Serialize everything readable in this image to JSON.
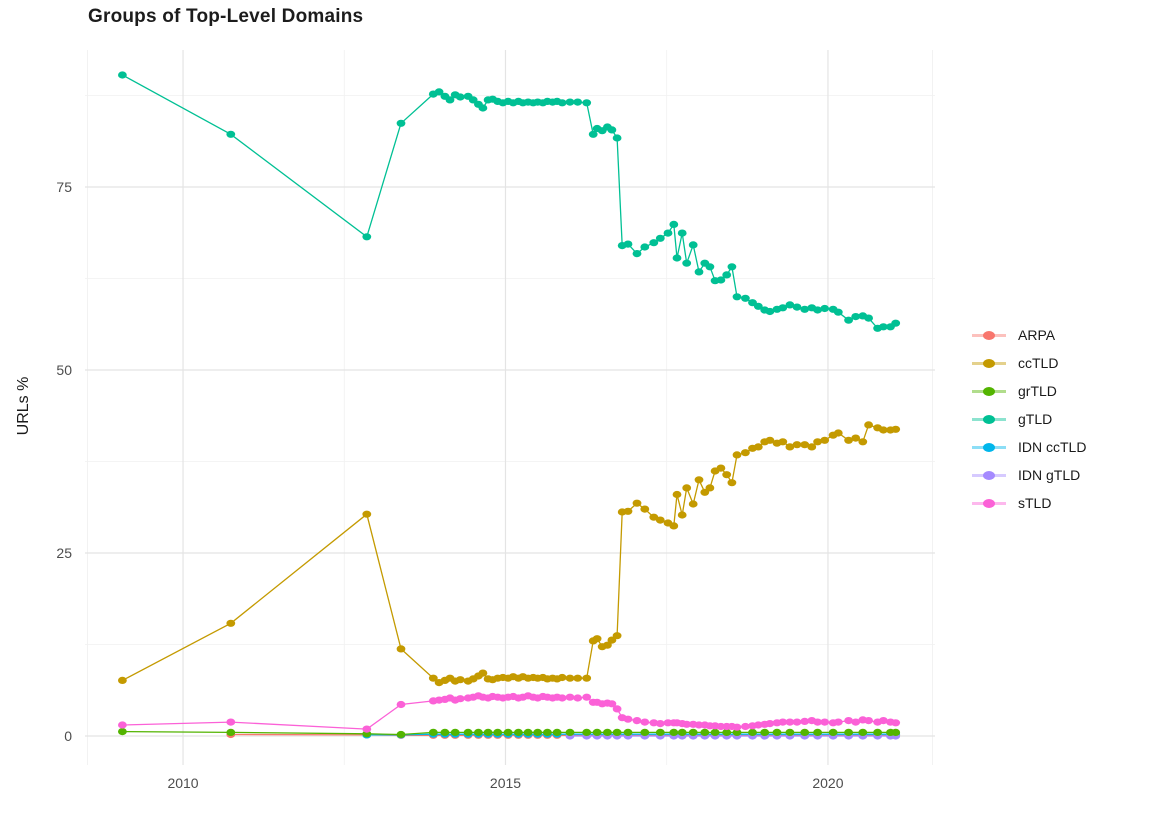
{
  "chart_data": {
    "type": "line",
    "title": "Groups of Top-Level Domains",
    "xlabel": "",
    "ylabel": "URLs %",
    "xlim": [
      2008.48,
      2021.66
    ],
    "ylim": [
      -3.96,
      93.72
    ],
    "grid": true,
    "legend_position": "right",
    "background_color": "#ffffff",
    "grid_major_color": "#e4e4e4",
    "grid_minor_color": "#f0f0f0",
    "axis_text_color": "#4d4d4d",
    "x_ticks": [
      2010,
      2015,
      2020
    ],
    "x_tick_labels": [
      "2010",
      "2015",
      "2020"
    ],
    "x_minor_ticks": [
      2008.52,
      2012.5,
      2017.5,
      2021.62
    ],
    "y_ticks": [
      0,
      25,
      50,
      75
    ],
    "y_tick_labels": [
      "0",
      "25",
      "50",
      "75"
    ],
    "y_minor_ticks": [
      12.5,
      37.5,
      62.5,
      87.5
    ],
    "draw_order": [
      "ARPA",
      "IDN ccTLD",
      "IDN gTLD",
      "grTLD",
      "gTLD",
      "ccTLD",
      "sTLD"
    ],
    "series": [
      {
        "name": "ARPA",
        "color": "#F8766D",
        "x": [
          2010.74,
          2012.85,
          2013.38,
          2013.88,
          2014.06,
          2014.22,
          2014.42,
          2014.58,
          2014.73,
          2014.88,
          2015.04,
          2015.2,
          2015.35,
          2015.5,
          2015.65,
          2015.8,
          2016.0,
          2016.26,
          2016.42,
          2016.58,
          2016.73,
          2016.9,
          2017.16,
          2017.4,
          2017.61,
          2017.74,
          2017.91,
          2018.09,
          2018.25,
          2018.43,
          2018.59,
          2018.83,
          2019.02,
          2019.21,
          2019.41,
          2019.64,
          2019.84,
          2020.08,
          2020.32,
          2020.54,
          2020.77,
          2020.97,
          2021.05
        ],
        "y": [
          0.2,
          0.15,
          0.1,
          0.1,
          0.1,
          0.1,
          0.1,
          0.1,
          0.1,
          0.1,
          0.1,
          0.1,
          0.1,
          0.1,
          0.1,
          0.1,
          0.1,
          0.1,
          0.1,
          0.1,
          0.1,
          0.1,
          0.1,
          0.1,
          0.1,
          0.1,
          0.1,
          0.1,
          0.1,
          0.1,
          0.1,
          0.1,
          0.1,
          0.1,
          0.1,
          0.1,
          0.1,
          0.1,
          0.1,
          0.1,
          0.1,
          0.1,
          0.1
        ]
      },
      {
        "name": "ccTLD",
        "color": "#C49A00",
        "x": [
          2009.06,
          2010.74,
          2012.85,
          2013.38,
          2013.88,
          2013.97,
          2014.06,
          2014.14,
          2014.22,
          2014.3,
          2014.42,
          2014.5,
          2014.58,
          2014.65,
          2014.73,
          2014.8,
          2014.88,
          2014.96,
          2015.04,
          2015.12,
          2015.2,
          2015.27,
          2015.35,
          2015.43,
          2015.5,
          2015.58,
          2015.65,
          2015.73,
          2015.8,
          2015.88,
          2016.0,
          2016.12,
          2016.26,
          2016.36,
          2016.42,
          2016.5,
          2016.58,
          2016.65,
          2016.73,
          2016.81,
          2016.9,
          2017.04,
          2017.16,
          2017.3,
          2017.4,
          2017.52,
          2017.61,
          2017.66,
          2017.74,
          2017.81,
          2017.91,
          2018.0,
          2018.09,
          2018.17,
          2018.25,
          2018.34,
          2018.43,
          2018.51,
          2018.59,
          2018.72,
          2018.83,
          2018.92,
          2019.02,
          2019.1,
          2019.21,
          2019.3,
          2019.41,
          2019.52,
          2019.64,
          2019.75,
          2019.84,
          2019.95,
          2020.08,
          2020.16,
          2020.32,
          2020.43,
          2020.54,
          2020.63,
          2020.77,
          2020.86,
          2020.97,
          2021.05
        ],
        "y": [
          7.6,
          15.4,
          30.3,
          11.9,
          7.9,
          7.3,
          7.6,
          7.9,
          7.5,
          7.7,
          7.5,
          7.8,
          8.2,
          8.6,
          7.8,
          7.7,
          7.9,
          8.0,
          7.9,
          8.1,
          7.9,
          8.1,
          7.9,
          8.0,
          7.9,
          8.0,
          7.8,
          7.9,
          7.8,
          8.0,
          7.9,
          7.9,
          7.9,
          13.0,
          13.3,
          12.2,
          12.4,
          13.1,
          13.7,
          30.6,
          30.7,
          31.8,
          31.0,
          29.9,
          29.5,
          29.1,
          28.7,
          33.0,
          30.2,
          33.9,
          31.7,
          35.0,
          33.3,
          33.9,
          36.2,
          36.6,
          35.7,
          34.6,
          38.4,
          38.7,
          39.3,
          39.5,
          40.2,
          40.4,
          40.0,
          40.2,
          39.5,
          39.8,
          39.8,
          39.5,
          40.2,
          40.4,
          41.1,
          41.4,
          40.4,
          40.7,
          40.2,
          42.5,
          42.1,
          41.8,
          41.8,
          41.9
        ]
      },
      {
        "name": "grTLD",
        "color": "#53B400",
        "x": [
          2009.06,
          2010.74,
          2012.85,
          2013.38,
          2013.88,
          2014.06,
          2014.22,
          2014.42,
          2014.58,
          2014.73,
          2014.88,
          2015.04,
          2015.2,
          2015.35,
          2015.5,
          2015.65,
          2015.8,
          2016.0,
          2016.26,
          2016.42,
          2016.58,
          2016.73,
          2016.9,
          2017.16,
          2017.4,
          2017.61,
          2017.74,
          2017.91,
          2018.09,
          2018.25,
          2018.43,
          2018.59,
          2018.83,
          2019.02,
          2019.21,
          2019.41,
          2019.64,
          2019.84,
          2020.08,
          2020.32,
          2020.54,
          2020.77,
          2020.97,
          2021.05
        ],
        "y": [
          0.6,
          0.5,
          0.3,
          0.2,
          0.5,
          0.5,
          0.5,
          0.5,
          0.5,
          0.5,
          0.5,
          0.5,
          0.5,
          0.5,
          0.5,
          0.5,
          0.5,
          0.5,
          0.5,
          0.5,
          0.5,
          0.5,
          0.5,
          0.5,
          0.5,
          0.5,
          0.5,
          0.5,
          0.5,
          0.5,
          0.5,
          0.5,
          0.5,
          0.5,
          0.5,
          0.5,
          0.5,
          0.5,
          0.5,
          0.5,
          0.5,
          0.5,
          0.5,
          0.5
        ]
      },
      {
        "name": "gTLD",
        "color": "#00C094",
        "x": [
          2009.06,
          2010.74,
          2012.85,
          2013.38,
          2013.88,
          2013.97,
          2014.06,
          2014.14,
          2014.22,
          2014.3,
          2014.42,
          2014.5,
          2014.58,
          2014.65,
          2014.73,
          2014.8,
          2014.88,
          2014.96,
          2015.04,
          2015.12,
          2015.2,
          2015.27,
          2015.35,
          2015.43,
          2015.5,
          2015.58,
          2015.65,
          2015.73,
          2015.8,
          2015.88,
          2016.0,
          2016.12,
          2016.26,
          2016.36,
          2016.42,
          2016.5,
          2016.58,
          2016.65,
          2016.73,
          2016.81,
          2016.9,
          2017.04,
          2017.16,
          2017.3,
          2017.4,
          2017.52,
          2017.61,
          2017.66,
          2017.74,
          2017.81,
          2017.91,
          2018.0,
          2018.09,
          2018.17,
          2018.25,
          2018.34,
          2018.43,
          2018.51,
          2018.59,
          2018.72,
          2018.83,
          2018.92,
          2019.02,
          2019.1,
          2019.21,
          2019.3,
          2019.41,
          2019.52,
          2019.64,
          2019.75,
          2019.84,
          2019.95,
          2020.08,
          2020.16,
          2020.32,
          2020.43,
          2020.54,
          2020.63,
          2020.77,
          2020.86,
          2020.97,
          2021.05
        ],
        "y": [
          90.3,
          82.2,
          68.2,
          83.7,
          87.7,
          88.0,
          87.4,
          86.9,
          87.6,
          87.3,
          87.4,
          86.9,
          86.3,
          85.8,
          86.9,
          87.0,
          86.7,
          86.5,
          86.7,
          86.5,
          86.7,
          86.5,
          86.6,
          86.5,
          86.6,
          86.5,
          86.7,
          86.6,
          86.7,
          86.5,
          86.6,
          86.6,
          86.5,
          82.2,
          83.0,
          82.7,
          83.2,
          82.8,
          81.7,
          67.0,
          67.2,
          65.9,
          66.8,
          67.4,
          68.0,
          68.7,
          69.9,
          65.3,
          68.7,
          64.6,
          67.1,
          63.4,
          64.6,
          64.1,
          62.2,
          62.3,
          63.0,
          64.1,
          60.0,
          59.8,
          59.2,
          58.7,
          58.2,
          58.0,
          58.3,
          58.5,
          58.9,
          58.6,
          58.3,
          58.5,
          58.2,
          58.4,
          58.3,
          57.9,
          56.8,
          57.3,
          57.4,
          57.1,
          55.7,
          55.9,
          55.9,
          56.4
        ]
      },
      {
        "name": "IDN ccTLD",
        "color": "#00B6EB",
        "x": [
          2012.85,
          2013.38,
          2013.88,
          2014.06,
          2014.22,
          2014.42,
          2014.58,
          2014.73,
          2014.88,
          2015.04,
          2015.2,
          2015.35,
          2015.5,
          2015.65,
          2015.8,
          2016.0,
          2016.26,
          2016.42,
          2016.58,
          2016.73,
          2016.9,
          2017.16,
          2017.4,
          2017.61,
          2017.74,
          2017.91,
          2018.09,
          2018.25,
          2018.43,
          2018.59,
          2018.83,
          2019.02,
          2019.21,
          2019.41,
          2019.64,
          2019.84,
          2020.08,
          2020.32,
          2020.54,
          2020.77,
          2020.97,
          2021.05
        ],
        "y": [
          0.15,
          0.15,
          0.25,
          0.25,
          0.25,
          0.25,
          0.25,
          0.25,
          0.25,
          0.25,
          0.25,
          0.25,
          0.25,
          0.25,
          0.25,
          0.25,
          0.25,
          0.25,
          0.25,
          0.25,
          0.25,
          0.25,
          0.25,
          0.25,
          0.25,
          0.25,
          0.25,
          0.25,
          0.25,
          0.25,
          0.25,
          0.25,
          0.25,
          0.25,
          0.25,
          0.25,
          0.25,
          0.25,
          0.25,
          0.25,
          0.25,
          0.25
        ]
      },
      {
        "name": "IDN gTLD",
        "color": "#A58AFF",
        "x": [
          2016.0,
          2016.26,
          2016.42,
          2016.58,
          2016.73,
          2016.9,
          2017.16,
          2017.4,
          2017.61,
          2017.74,
          2017.91,
          2018.09,
          2018.25,
          2018.43,
          2018.59,
          2018.83,
          2019.02,
          2019.21,
          2019.41,
          2019.64,
          2019.84,
          2020.08,
          2020.32,
          2020.54,
          2020.77,
          2020.97,
          2021.05
        ],
        "y": [
          0.0,
          0.0,
          0.0,
          0.0,
          0.0,
          0.0,
          0.0,
          0.0,
          0.0,
          0.0,
          0.0,
          0.0,
          0.0,
          0.0,
          0.0,
          0.0,
          0.0,
          0.0,
          0.0,
          0.0,
          0.0,
          0.0,
          0.0,
          0.0,
          0.0,
          0.0,
          0.0
        ]
      },
      {
        "name": "sTLD",
        "color": "#FB61D7",
        "x": [
          2009.06,
          2010.74,
          2012.85,
          2013.38,
          2013.88,
          2013.97,
          2014.06,
          2014.14,
          2014.22,
          2014.3,
          2014.42,
          2014.5,
          2014.58,
          2014.65,
          2014.73,
          2014.8,
          2014.88,
          2014.96,
          2015.04,
          2015.12,
          2015.2,
          2015.27,
          2015.35,
          2015.43,
          2015.5,
          2015.58,
          2015.65,
          2015.73,
          2015.8,
          2015.88,
          2016.0,
          2016.12,
          2016.26,
          2016.36,
          2016.42,
          2016.5,
          2016.58,
          2016.65,
          2016.73,
          2016.81,
          2016.9,
          2017.04,
          2017.16,
          2017.3,
          2017.4,
          2017.52,
          2017.61,
          2017.66,
          2017.74,
          2017.81,
          2017.91,
          2018.0,
          2018.09,
          2018.17,
          2018.25,
          2018.34,
          2018.43,
          2018.51,
          2018.59,
          2018.72,
          2018.83,
          2018.92,
          2019.02,
          2019.1,
          2019.21,
          2019.3,
          2019.41,
          2019.52,
          2019.64,
          2019.75,
          2019.84,
          2019.95,
          2020.08,
          2020.16,
          2020.32,
          2020.43,
          2020.54,
          2020.63,
          2020.77,
          2020.86,
          2020.97,
          2021.05
        ],
        "y": [
          1.5,
          1.9,
          0.95,
          4.3,
          4.8,
          4.9,
          5.0,
          5.2,
          4.9,
          5.1,
          5.2,
          5.3,
          5.5,
          5.3,
          5.2,
          5.4,
          5.3,
          5.2,
          5.3,
          5.4,
          5.2,
          5.3,
          5.5,
          5.3,
          5.2,
          5.4,
          5.3,
          5.2,
          5.3,
          5.2,
          5.3,
          5.2,
          5.3,
          4.6,
          4.6,
          4.4,
          4.5,
          4.4,
          3.7,
          2.5,
          2.3,
          2.1,
          1.9,
          1.8,
          1.7,
          1.8,
          1.8,
          1.8,
          1.7,
          1.6,
          1.6,
          1.5,
          1.5,
          1.4,
          1.4,
          1.3,
          1.3,
          1.3,
          1.2,
          1.3,
          1.4,
          1.5,
          1.6,
          1.7,
          1.8,
          1.9,
          1.9,
          1.9,
          2.0,
          2.1,
          1.9,
          1.9,
          1.8,
          1.9,
          2.1,
          1.9,
          2.2,
          2.1,
          1.9,
          2.1,
          1.9,
          1.8
        ]
      }
    ]
  }
}
